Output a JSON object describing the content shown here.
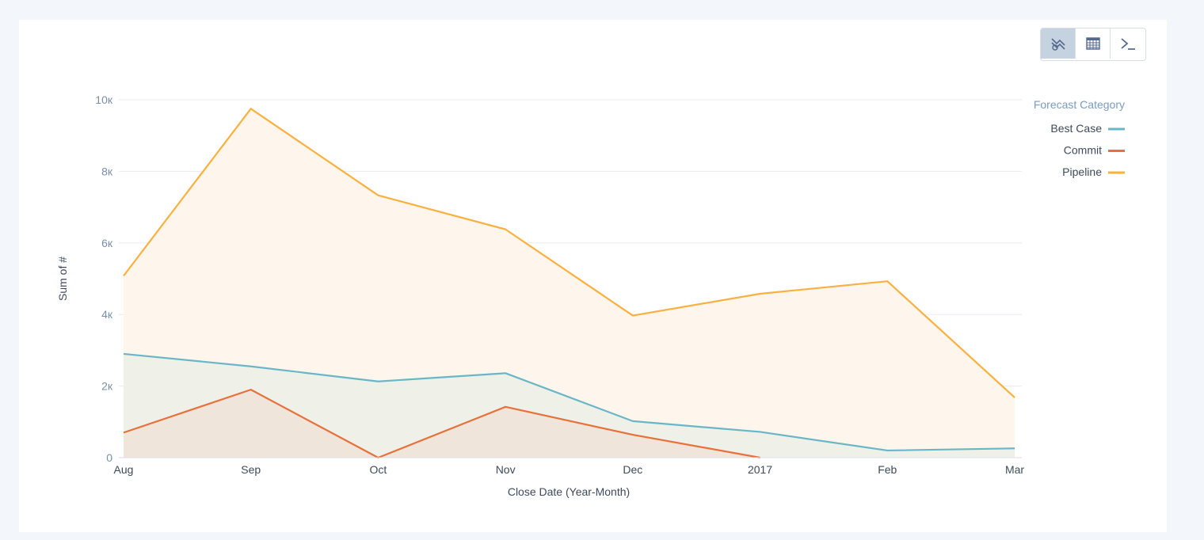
{
  "toolbar": {
    "buttons": [
      {
        "icon": "chart-type-icon",
        "active": true
      },
      {
        "icon": "table-icon",
        "active": false
      },
      {
        "icon": "console-icon",
        "active": false
      }
    ]
  },
  "chart_data": {
    "type": "area",
    "categories": [
      "Aug",
      "Sep",
      "Oct",
      "Nov",
      "Dec",
      "2017",
      "Feb",
      "Mar"
    ],
    "series": [
      {
        "name": "Best Case",
        "color": "#6ab6c7",
        "fill": "#eef0e8",
        "values": [
          2900,
          2550,
          2130,
          2360,
          1020,
          720,
          200,
          260
        ]
      },
      {
        "name": "Commit",
        "color": "#e8703a",
        "fill": "#efe4da",
        "values": [
          700,
          1900,
          0,
          1420,
          640,
          0,
          null,
          null
        ]
      },
      {
        "name": "Pipeline",
        "color": "#fbb03f",
        "fill": "#fef6ec",
        "values": [
          5080,
          9750,
          7330,
          6380,
          3970,
          4580,
          4930,
          1680
        ]
      }
    ],
    "yticks": [
      {
        "value": 0,
        "label": "0"
      },
      {
        "value": 2000,
        "label": "2к"
      },
      {
        "value": 4000,
        "label": "4к"
      },
      {
        "value": 6000,
        "label": "6к"
      },
      {
        "value": 8000,
        "label": "8к"
      },
      {
        "value": 10000,
        "label": "10к"
      }
    ],
    "ylim": [
      0,
      10000
    ],
    "xlabel": "Close Date (Year-Month)",
    "ylabel": "Sum of #",
    "legend_title": "Forecast Category",
    "legend_position": "top-right",
    "grid": true
  }
}
